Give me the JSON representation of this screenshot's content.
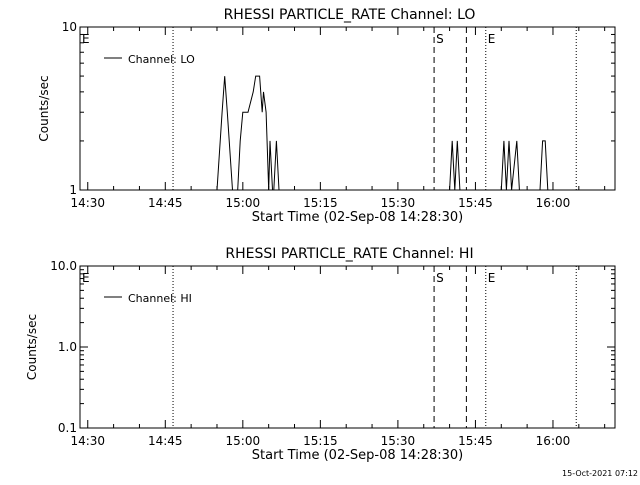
{
  "footer": {
    "timestamp": "15-Oct-2021 07:12"
  },
  "chart_data": [
    {
      "type": "line",
      "title": "RHESSI PARTICLE_RATE Channel: LO",
      "xlabel": "Start Time (02-Sep-08 14:28:30)",
      "ylabel": "Counts/sec",
      "yscale": "log",
      "ylim": [
        1,
        10
      ],
      "xlim": [
        "14:28:30",
        "16:12:00"
      ],
      "x_tick_labels": [
        "14:30",
        "14:45",
        "15:00",
        "15:15",
        "15:30",
        "15:45",
        "16:00"
      ],
      "y_tick_labels": [
        "1",
        "10"
      ],
      "legend": {
        "label": "Channel: LO",
        "placement": "top-left"
      },
      "markers": [
        {
          "label": "E",
          "time": "14:28:30",
          "style": "none"
        },
        {
          "label": "",
          "time": "14:46:30",
          "style": "dotted"
        },
        {
          "label": "S",
          "time": "15:37:00",
          "style": "dashed"
        },
        {
          "label": "",
          "time": "15:43:15",
          "style": "dashed"
        },
        {
          "label": "E",
          "time": "15:47:00",
          "style": "dotted"
        },
        {
          "label": "",
          "time": "16:04:30",
          "style": "dotted"
        }
      ],
      "series": [
        {
          "name": "Channel: LO",
          "points": [
            [
              "14:55:00",
              1
            ],
            [
              "14:56:00",
              3
            ],
            [
              "14:56:30",
              5
            ],
            [
              "14:57:00",
              3
            ],
            [
              "14:58:00",
              1
            ],
            [
              "14:58:15",
              1
            ],
            [
              "14:59:00",
              1
            ],
            [
              "14:59:30",
              2
            ],
            [
              "15:00:00",
              3
            ],
            [
              "15:01:00",
              3
            ],
            [
              "15:02:00",
              4
            ],
            [
              "15:02:30",
              5
            ],
            [
              "15:03:15",
              5
            ],
            [
              "15:03:45",
              3
            ],
            [
              "15:04:00",
              4
            ],
            [
              "15:04:30",
              3
            ],
            [
              "15:05:00",
              1
            ],
            [
              "15:05:15",
              2
            ],
            [
              "15:05:45",
              1
            ],
            [
              "15:06:00",
              1
            ],
            [
              "15:06:30",
              2
            ],
            [
              "15:07:00",
              1
            ],
            [
              "15:40:00",
              1
            ],
            [
              "15:40:30",
              2
            ],
            [
              "15:41:00",
              1
            ],
            [
              "15:41:30",
              2
            ],
            [
              "15:42:00",
              1
            ],
            [
              "15:50:00",
              1
            ],
            [
              "15:50:30",
              2
            ],
            [
              "15:51:00",
              1
            ],
            [
              "15:51:30",
              2
            ],
            [
              "15:52:00",
              1
            ],
            [
              "15:53:00",
              2
            ],
            [
              "15:53:30",
              1
            ],
            [
              "15:55:00",
              1
            ],
            [
              "15:57:30",
              1
            ],
            [
              "15:58:00",
              2
            ],
            [
              "15:58:30",
              2
            ],
            [
              "15:59:00",
              1
            ]
          ]
        }
      ]
    },
    {
      "type": "line",
      "title": "RHESSI PARTICLE_RATE Channel: HI",
      "xlabel": "Start Time (02-Sep-08 14:28:30)",
      "ylabel": "Counts/sec",
      "yscale": "log",
      "ylim": [
        0.1,
        10
      ],
      "xlim": [
        "14:28:30",
        "16:12:00"
      ],
      "x_tick_labels": [
        "14:30",
        "14:45",
        "15:00",
        "15:15",
        "15:30",
        "15:45",
        "16:00"
      ],
      "y_tick_labels": [
        "0.1",
        "1.0",
        "10.0"
      ],
      "legend": {
        "label": "Channel: HI",
        "placement": "top-left"
      },
      "markers": [
        {
          "label": "E",
          "time": "14:28:30",
          "style": "none"
        },
        {
          "label": "",
          "time": "14:46:30",
          "style": "dotted"
        },
        {
          "label": "S",
          "time": "15:37:00",
          "style": "dashed"
        },
        {
          "label": "",
          "time": "15:43:15",
          "style": "dashed"
        },
        {
          "label": "E",
          "time": "15:47:00",
          "style": "dotted"
        },
        {
          "label": "",
          "time": "16:04:30",
          "style": "dotted"
        }
      ],
      "series": [
        {
          "name": "Channel: HI",
          "points": []
        }
      ]
    }
  ]
}
